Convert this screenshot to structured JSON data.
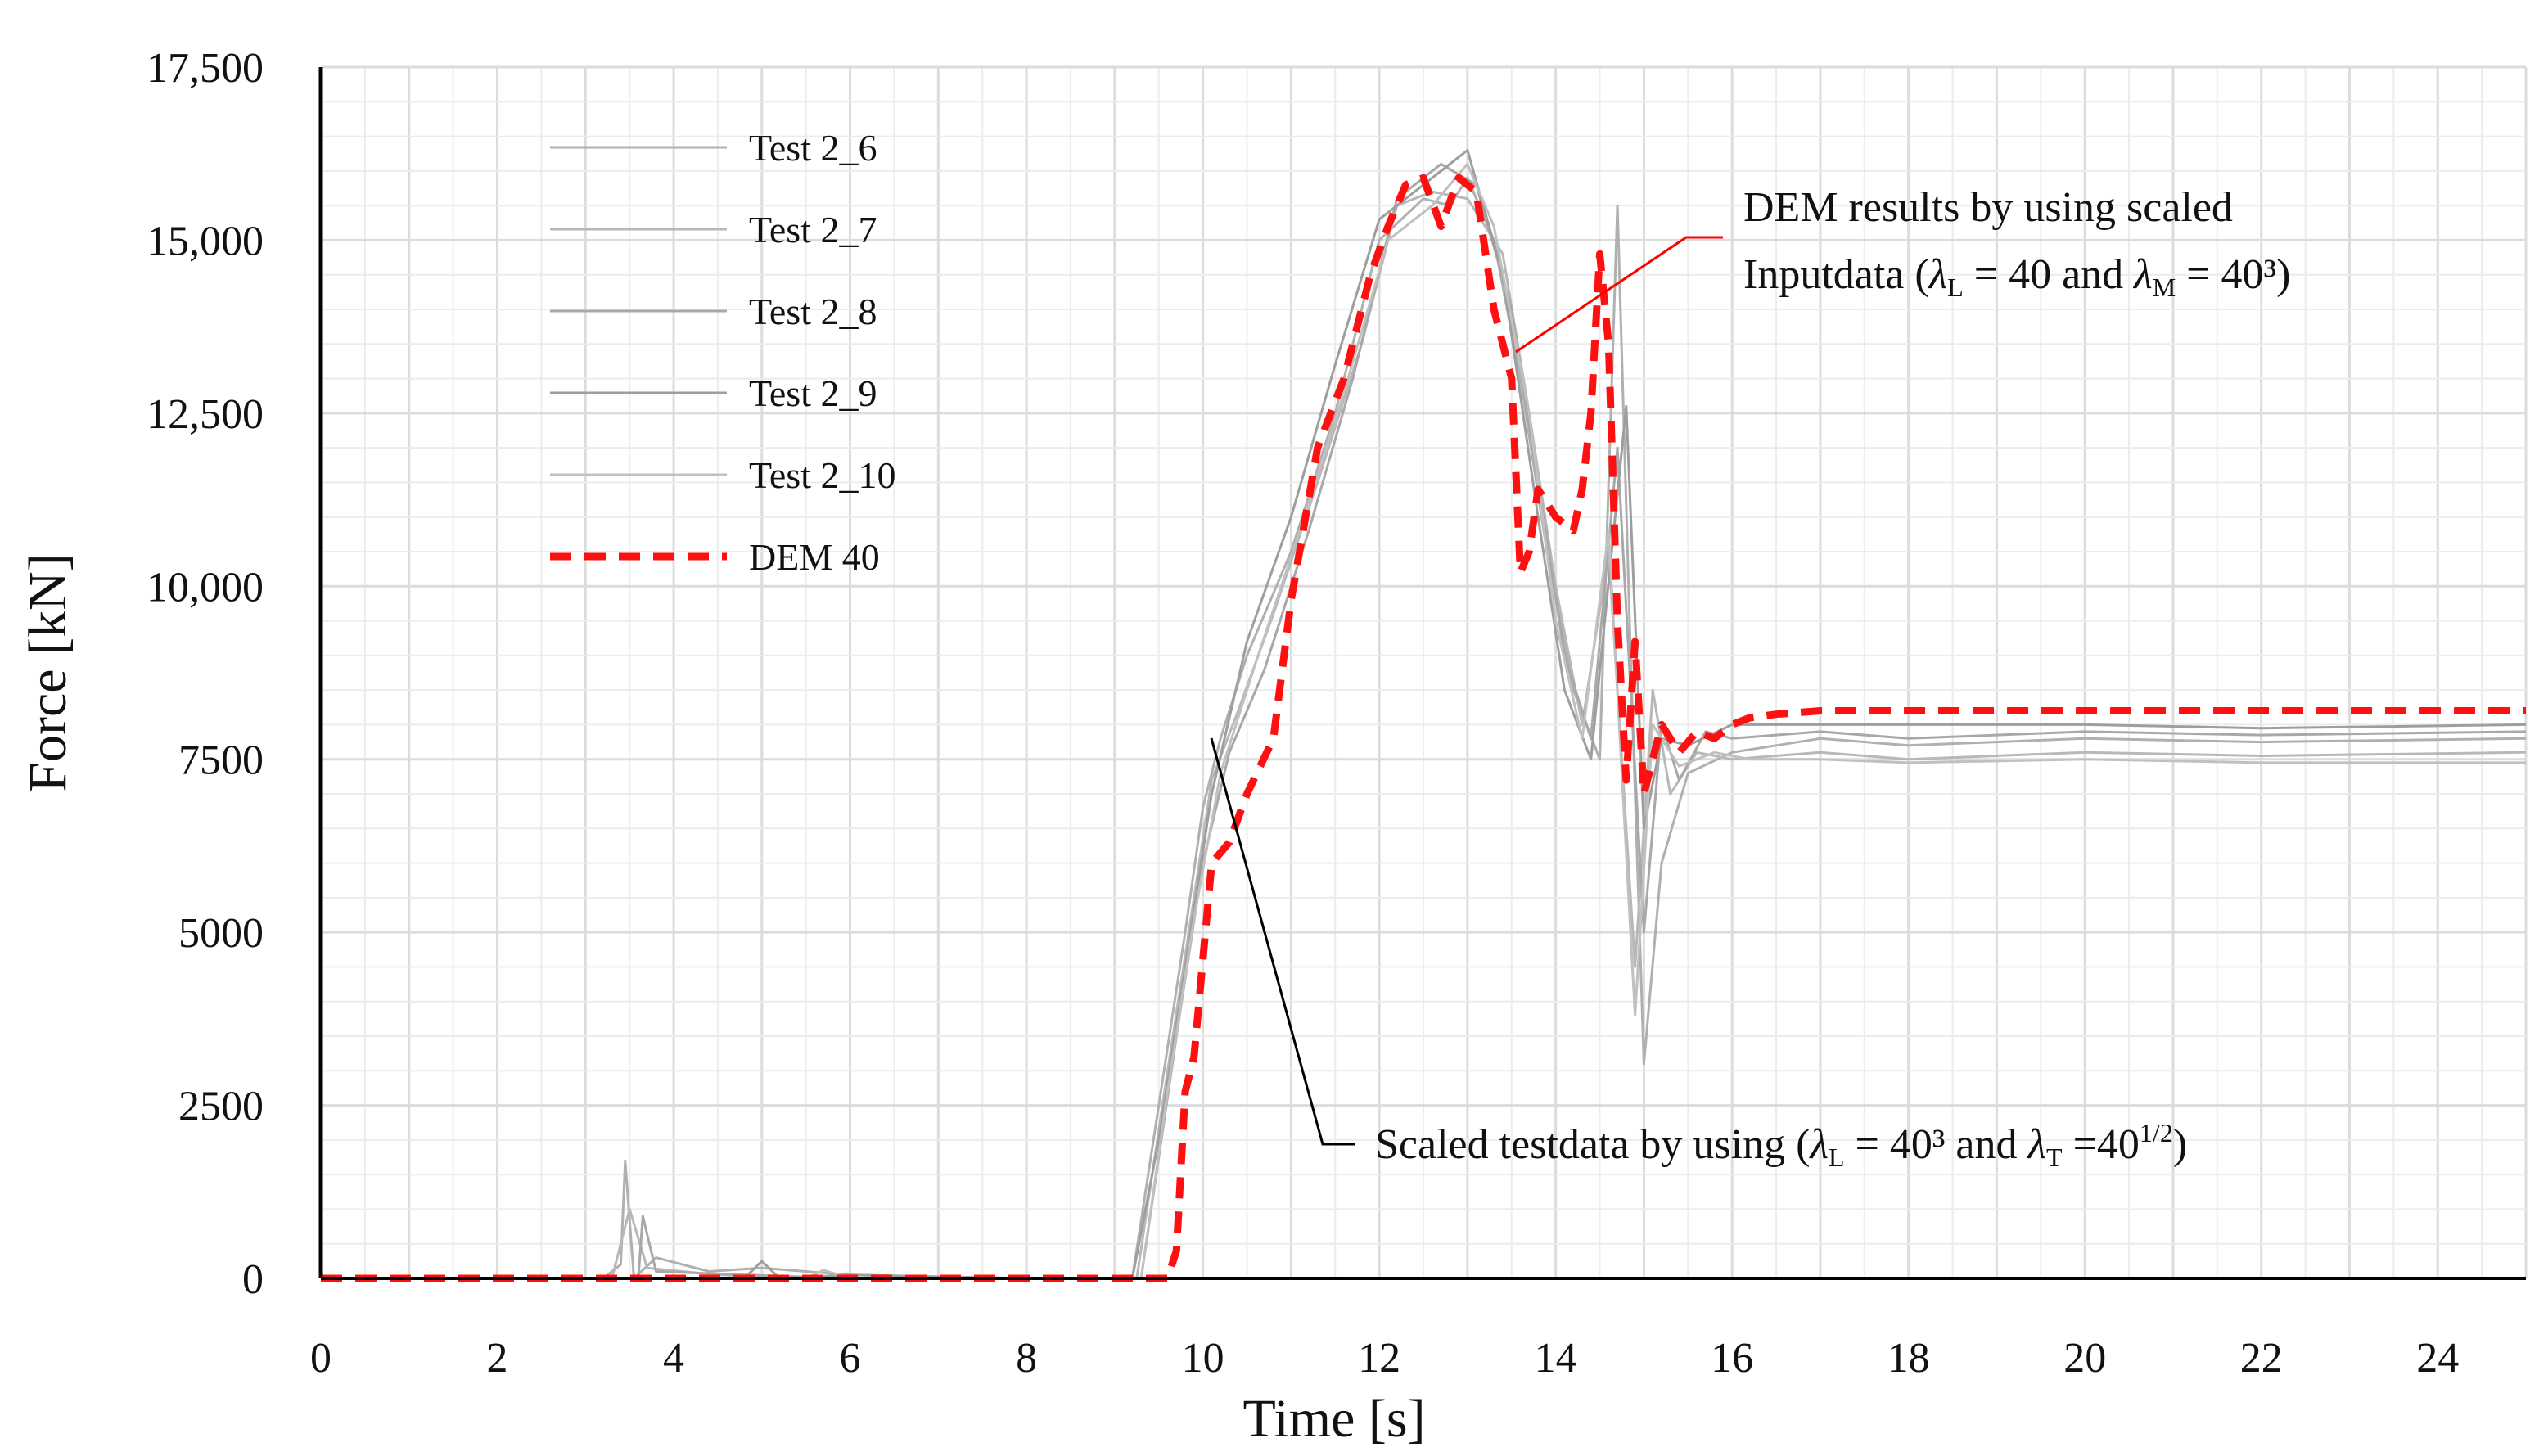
{
  "chart_data": {
    "type": "line",
    "title": "",
    "xlabel": "Time [s]",
    "ylabel": "Force [kN]",
    "xlim": [
      0,
      25
    ],
    "ylim": [
      0,
      17500
    ],
    "x_ticks": [
      0,
      2,
      4,
      6,
      8,
      10,
      12,
      14,
      16,
      18,
      20,
      22,
      24
    ],
    "x_tick_labels": [
      "0",
      "2",
      "4",
      "6",
      "8",
      "10",
      "12",
      "14",
      "16",
      "18",
      "20",
      "22",
      "24"
    ],
    "y_ticks": [
      0,
      2500,
      5000,
      7500,
      10000,
      12500,
      15000,
      17500
    ],
    "y_tick_labels": [
      "0",
      "2500",
      "5000",
      "7500",
      "10,000",
      "12,500",
      "15,000",
      "17,500"
    ],
    "grid": true,
    "legend_position": "top-left",
    "series": [
      {
        "name": "Test 2_6",
        "color": "#b0b0b0",
        "style": "solid",
        "x": [
          0,
          2,
          3.2,
          3.4,
          3.45,
          3.55,
          3.8,
          4.4,
          5,
          6,
          8,
          9.2,
          9.5,
          9.8,
          10,
          10.2,
          10.5,
          11,
          11.5,
          12,
          12.5,
          12.8,
          13,
          13.3,
          13.6,
          13.9,
          14.2,
          14.5,
          14.7,
          14.85,
          15,
          15.2,
          15.5,
          16,
          16.5,
          17,
          18,
          20,
          22,
          25
        ],
        "values": [
          0,
          0,
          0,
          200,
          1700,
          0,
          300,
          100,
          150,
          50,
          0,
          0,
          2500,
          5000,
          6800,
          7800,
          9000,
          10500,
          12500,
          15000,
          15600,
          15500,
          15900,
          15000,
          13000,
          10500,
          8500,
          7500,
          15500,
          9000,
          3100,
          6000,
          7300,
          7600,
          7700,
          7800,
          7700,
          7800,
          7750,
          7800
        ]
      },
      {
        "name": "Test 2_7",
        "color": "#b8b8b8",
        "style": "solid",
        "x": [
          0,
          3.3,
          3.5,
          3.7,
          4.5,
          6,
          8,
          9.25,
          9.6,
          9.9,
          10.1,
          10.4,
          10.8,
          11.3,
          11.8,
          12.2,
          12.6,
          13,
          13.4,
          13.7,
          14,
          14.3,
          14.6,
          14.9,
          15.1,
          15.3,
          15.6,
          16,
          17,
          18,
          20,
          22,
          25
        ],
        "values": [
          0,
          0,
          1000,
          150,
          50,
          0,
          0,
          0,
          3000,
          5500,
          7200,
          8200,
          9600,
          11500,
          13500,
          15500,
          15700,
          15600,
          14800,
          12500,
          10000,
          8000,
          10500,
          4500,
          8500,
          7000,
          7600,
          7500,
          7600,
          7500,
          7600,
          7550,
          7600
        ]
      },
      {
        "name": "Test 2_8",
        "color": "#a8a8a8",
        "style": "solid",
        "x": [
          0,
          3.6,
          3.65,
          3.8,
          4.6,
          6,
          8,
          9.3,
          9.7,
          10,
          10.3,
          10.7,
          11.2,
          11.7,
          12.2,
          12.7,
          13.1,
          13.5,
          13.8,
          14.1,
          14.4,
          14.7,
          15,
          15.2,
          15.4,
          15.7,
          16,
          17,
          18,
          20,
          22,
          25
        ],
        "values": [
          0,
          0,
          900,
          100,
          60,
          0,
          0,
          0,
          3500,
          6000,
          7600,
          8800,
          10800,
          13000,
          15600,
          16100,
          15800,
          14000,
          11500,
          9000,
          7800,
          12000,
          5000,
          8000,
          7200,
          7900,
          7800,
          7900,
          7800,
          7900,
          7850,
          7900
        ]
      },
      {
        "name": "Test 2_9",
        "color": "#9e9e9e",
        "style": "solid",
        "x": [
          0,
          4.8,
          5,
          5.2,
          6,
          8,
          9.2,
          9.5,
          9.8,
          10.1,
          10.5,
          11,
          11.5,
          12,
          12.5,
          13,
          13.4,
          13.8,
          14.1,
          14.4,
          14.8,
          15,
          15.2,
          15.5,
          16,
          17,
          18,
          20,
          22,
          25
        ],
        "values": [
          0,
          0,
          250,
          0,
          50,
          0,
          0,
          2000,
          4500,
          7000,
          9200,
          11000,
          13200,
          15300,
          15800,
          16300,
          14500,
          11000,
          8500,
          7500,
          12600,
          6500,
          7800,
          7700,
          8000,
          8000,
          8000,
          8000,
          7950,
          8000
        ]
      },
      {
        "name": "Test 2_10",
        "color": "#c0c0c0",
        "style": "solid",
        "x": [
          0,
          5.5,
          5.7,
          6,
          8,
          9.3,
          9.6,
          9.9,
          10.2,
          10.6,
          11.1,
          11.6,
          12.1,
          12.6,
          13,
          13.3,
          13.7,
          14,
          14.3,
          14.6,
          14.9,
          15.1,
          15.4,
          15.8,
          16.2,
          17,
          18,
          20,
          22,
          25
        ],
        "values": [
          0,
          0,
          120,
          0,
          0,
          0,
          2700,
          5200,
          7300,
          8900,
          10800,
          12800,
          15000,
          15500,
          16100,
          15200,
          12500,
          9500,
          7800,
          10800,
          3800,
          8000,
          7400,
          7600,
          7500,
          7500,
          7450,
          7500,
          7450,
          7450
        ]
      },
      {
        "name": "DEM 40",
        "color": "#ff1010",
        "style": "dashed",
        "x": [
          0,
          9.6,
          9.7,
          9.8,
          9.9,
          10.1,
          10.3,
          10.5,
          10.8,
          11,
          11.3,
          11.6,
          11.9,
          12.1,
          12.3,
          12.5,
          12.7,
          12.9,
          13.1,
          13.3,
          13.5,
          13.6,
          13.7,
          13.8,
          14,
          14.2,
          14.3,
          14.4,
          14.5,
          14.6,
          14.7,
          14.8,
          14.9,
          15,
          15.2,
          15.4,
          15.6,
          15.8,
          16,
          16.2,
          16.5,
          17,
          17.5,
          18,
          19,
          20,
          21,
          22,
          23,
          24,
          25
        ],
        "values": [
          0,
          0,
          400,
          2700,
          3200,
          6000,
          6300,
          7000,
          7800,
          9800,
          12000,
          13000,
          14500,
          15200,
          15800,
          15900,
          15200,
          15900,
          15700,
          14000,
          13000,
          10200,
          10500,
          11400,
          11000,
          10800,
          11400,
          12500,
          14800,
          13500,
          9500,
          7200,
          9200,
          7000,
          8000,
          7600,
          7900,
          7800,
          8000,
          8100,
          8150,
          8200,
          8200,
          8200,
          8200,
          8200,
          8200,
          8200,
          8200,
          8200,
          8200
        ]
      }
    ],
    "annotations": [
      {
        "text": "DEM results by using scaled",
        "text2": "Inputdata (λL = 40 and λM = 40³)",
        "points_to": [
          13.6,
          13300
        ]
      },
      {
        "text": "Scaled testdata by using (λL = 40³ and λT =40^(1/2))",
        "points_to": [
          10.1,
          7800
        ]
      }
    ]
  },
  "annotation_1": {
    "line1": "DEM results by using scaled",
    "pre": "Inputdata (",
    "lam1": "λ",
    "sub1": "L",
    "mid": " = 40 and ",
    "lam2": "λ",
    "sub2": "M",
    "post": " = 40³)"
  },
  "annotation_2": {
    "pre": "Scaled testdata by using (",
    "lam1": "λ",
    "sub1": "L",
    "mid": " = 40³ and ",
    "lam2": "λ",
    "sub2": "T",
    "mid2": " =40",
    "sup": "1/2",
    "post": ")"
  }
}
